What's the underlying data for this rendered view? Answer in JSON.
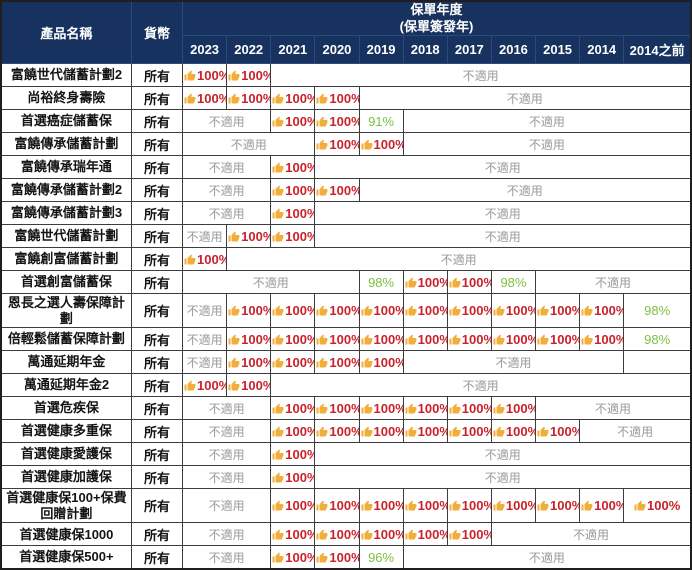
{
  "table": {
    "col_product": "產品名稱",
    "col_currency": "貨幣",
    "group_header_line1": "保單年度",
    "group_header_line2": "(保單簽發年)",
    "years": [
      "2023",
      "2022",
      "2021",
      "2020",
      "2019",
      "2018",
      "2017",
      "2016",
      "2015",
      "2014",
      "2014之前"
    ],
    "na_label": "不適用",
    "rows": [
      {
        "name": "富饒世代儲蓄計劃2",
        "currency": "所有",
        "cells": [
          {
            "t": "up",
            "v": "100%"
          },
          {
            "t": "up",
            "v": "100%"
          },
          {
            "t": "na",
            "span": 9
          }
        ]
      },
      {
        "name": "尚裕終身壽險",
        "currency": "所有",
        "cells": [
          {
            "t": "up",
            "v": "100%"
          },
          {
            "t": "up",
            "v": "100%"
          },
          {
            "t": "up",
            "v": "100%"
          },
          {
            "t": "up",
            "v": "100%"
          },
          {
            "t": "na",
            "span": 7
          }
        ]
      },
      {
        "name": "首選癌症儲蓄保",
        "currency": "所有",
        "cells": [
          {
            "t": "na",
            "span": 2
          },
          {
            "t": "up",
            "v": "100%"
          },
          {
            "t": "up",
            "v": "100%"
          },
          {
            "t": "g",
            "v": "91%"
          },
          {
            "t": "na",
            "span": 6
          }
        ]
      },
      {
        "name": "富饒傳承儲蓄計劃",
        "currency": "所有",
        "cells": [
          {
            "t": "na",
            "span": 3
          },
          {
            "t": "up",
            "v": "100%"
          },
          {
            "t": "up",
            "v": "100%"
          },
          {
            "t": "na",
            "span": 6
          }
        ]
      },
      {
        "name": "富饒傳承瑞年通",
        "currency": "所有",
        "cells": [
          {
            "t": "na",
            "span": 2
          },
          {
            "t": "up",
            "v": "100%"
          },
          {
            "t": "na",
            "span": 8
          }
        ]
      },
      {
        "name": "富饒傳承儲蓄計劃2",
        "currency": "所有",
        "cells": [
          {
            "t": "na",
            "span": 2
          },
          {
            "t": "up",
            "v": "100%"
          },
          {
            "t": "up",
            "v": "100%"
          },
          {
            "t": "na",
            "span": 7
          }
        ]
      },
      {
        "name": "富饒傳承儲蓄計劃3",
        "currency": "所有",
        "cells": [
          {
            "t": "na",
            "span": 2
          },
          {
            "t": "up",
            "v": "100%"
          },
          {
            "t": "na",
            "span": 8
          }
        ]
      },
      {
        "name": "富饒世代儲蓄計劃",
        "currency": "所有",
        "cells": [
          {
            "t": "na",
            "span": 1
          },
          {
            "t": "up",
            "v": "100%"
          },
          {
            "t": "up",
            "v": "100%"
          },
          {
            "t": "na",
            "span": 8
          }
        ]
      },
      {
        "name": "富饒創富儲蓄計劃",
        "currency": "所有",
        "cells": [
          {
            "t": "up",
            "v": "100%"
          },
          {
            "t": "na",
            "span": 10
          }
        ]
      },
      {
        "name": "首選創富儲蓄保",
        "currency": "所有",
        "cells": [
          {
            "t": "na",
            "span": 4
          },
          {
            "t": "g",
            "v": "98%"
          },
          {
            "t": "up",
            "v": "100%"
          },
          {
            "t": "up",
            "v": "100%"
          },
          {
            "t": "g",
            "v": "98%"
          },
          {
            "t": "na",
            "span": 3
          }
        ]
      },
      {
        "name": "恩長之選人壽保障計劃",
        "currency": "所有",
        "cells": [
          {
            "t": "na",
            "span": 1
          },
          {
            "t": "up",
            "v": "100%"
          },
          {
            "t": "up",
            "v": "100%"
          },
          {
            "t": "up",
            "v": "100%"
          },
          {
            "t": "up",
            "v": "100%"
          },
          {
            "t": "up",
            "v": "100%"
          },
          {
            "t": "up",
            "v": "100%"
          },
          {
            "t": "up",
            "v": "100%"
          },
          {
            "t": "up",
            "v": "100%"
          },
          {
            "t": "up",
            "v": "100%"
          },
          {
            "t": "g",
            "v": "98%"
          }
        ]
      },
      {
        "name": "倍輕鬆儲蓄保障計劃",
        "currency": "所有",
        "cells": [
          {
            "t": "na",
            "span": 1
          },
          {
            "t": "up",
            "v": "100%"
          },
          {
            "t": "up",
            "v": "100%"
          },
          {
            "t": "up",
            "v": "100%"
          },
          {
            "t": "up",
            "v": "100%"
          },
          {
            "t": "up",
            "v": "100%"
          },
          {
            "t": "up",
            "v": "100%"
          },
          {
            "t": "up",
            "v": "100%"
          },
          {
            "t": "up",
            "v": "100%"
          },
          {
            "t": "up",
            "v": "100%"
          },
          {
            "t": "g",
            "v": "98%"
          }
        ]
      },
      {
        "name": "萬通延期年金",
        "currency": "所有",
        "cells": [
          {
            "t": "na",
            "span": 1
          },
          {
            "t": "up",
            "v": "100%"
          },
          {
            "t": "up",
            "v": "100%"
          },
          {
            "t": "up",
            "v": "100%"
          },
          {
            "t": "up",
            "v": "100%"
          },
          {
            "t": "na",
            "span": 5
          },
          {
            "t": "e",
            "span": 1
          }
        ]
      },
      {
        "name": "萬通延期年金2",
        "currency": "所有",
        "cells": [
          {
            "t": "up",
            "v": "100%"
          },
          {
            "t": "up",
            "v": "100%"
          },
          {
            "t": "na",
            "span": 9
          }
        ]
      },
      {
        "name": "首選危疾保",
        "currency": "所有",
        "cells": [
          {
            "t": "na",
            "span": 2
          },
          {
            "t": "up",
            "v": "100%"
          },
          {
            "t": "up",
            "v": "100%"
          },
          {
            "t": "up",
            "v": "100%"
          },
          {
            "t": "up",
            "v": "100%"
          },
          {
            "t": "up",
            "v": "100%"
          },
          {
            "t": "up",
            "v": "100%"
          },
          {
            "t": "na",
            "span": 3
          }
        ]
      },
      {
        "name": "首選健康多重保",
        "currency": "所有",
        "cells": [
          {
            "t": "na",
            "span": 2
          },
          {
            "t": "up",
            "v": "100%"
          },
          {
            "t": "up",
            "v": "100%"
          },
          {
            "t": "up",
            "v": "100%"
          },
          {
            "t": "up",
            "v": "100%"
          },
          {
            "t": "up",
            "v": "100%"
          },
          {
            "t": "up",
            "v": "100%"
          },
          {
            "t": "up",
            "v": "100%"
          },
          {
            "t": "na",
            "span": 2
          }
        ]
      },
      {
        "name": "首選健康愛護保",
        "currency": "所有",
        "cells": [
          {
            "t": "na",
            "span": 2
          },
          {
            "t": "up",
            "v": "100%"
          },
          {
            "t": "na",
            "span": 8
          }
        ]
      },
      {
        "name": "首選健康加護保",
        "currency": "所有",
        "cells": [
          {
            "t": "na",
            "span": 2
          },
          {
            "t": "up",
            "v": "100%"
          },
          {
            "t": "na",
            "span": 8
          }
        ]
      },
      {
        "name": "首選健康保100+保費回贈計劃",
        "currency": "所有",
        "cells": [
          {
            "t": "na",
            "span": 2
          },
          {
            "t": "up",
            "v": "100%"
          },
          {
            "t": "up",
            "v": "100%"
          },
          {
            "t": "up",
            "v": "100%"
          },
          {
            "t": "up",
            "v": "100%"
          },
          {
            "t": "up",
            "v": "100%"
          },
          {
            "t": "up",
            "v": "100%"
          },
          {
            "t": "up",
            "v": "100%"
          },
          {
            "t": "up",
            "v": "100%"
          },
          {
            "t": "up",
            "v": "100%"
          }
        ]
      },
      {
        "name": "首選健康保1000",
        "currency": "所有",
        "cells": [
          {
            "t": "na",
            "span": 2
          },
          {
            "t": "up",
            "v": "100%"
          },
          {
            "t": "up",
            "v": "100%"
          },
          {
            "t": "up",
            "v": "100%"
          },
          {
            "t": "up",
            "v": "100%"
          },
          {
            "t": "up",
            "v": "100%"
          },
          {
            "t": "na",
            "span": 4
          }
        ]
      },
      {
        "name": "首選健康保500+",
        "currency": "所有",
        "cells": [
          {
            "t": "na",
            "span": 2
          },
          {
            "t": "up",
            "v": "100%"
          },
          {
            "t": "up",
            "v": "100%"
          },
          {
            "t": "g",
            "v": "96%"
          },
          {
            "t": "na",
            "span": 6
          }
        ]
      }
    ]
  },
  "colors": {
    "header_bg": "#17325e",
    "header_text": "#ffffff",
    "approved_red": "#c9222b",
    "partial_green": "#7cc142",
    "na_gray": "#989a9c",
    "thumb_yellow": "#f2ae3a",
    "border": "#3d3d3d"
  }
}
